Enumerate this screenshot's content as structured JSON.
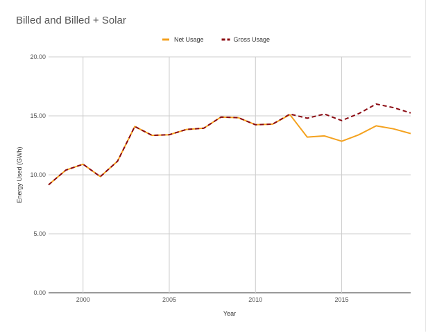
{
  "chart_data": {
    "type": "line",
    "title": "Billed and Billed + Solar",
    "xlabel": "Year",
    "ylabel": "Energy Used (GWh)",
    "xlim": [
      1998,
      2019
    ],
    "ylim": [
      0,
      20
    ],
    "xticks": [
      2000,
      2005,
      2010,
      2015
    ],
    "xtick_labels": [
      "2000",
      "2005",
      "2010",
      "2015"
    ],
    "yticks": [
      0,
      5,
      10,
      15,
      20
    ],
    "ytick_labels": [
      "0.00",
      "5.00",
      "10.00",
      "15.00",
      "20.00"
    ],
    "grid": true,
    "legend_position": "top",
    "x": [
      1998,
      1999,
      2000,
      2001,
      2002,
      2003,
      2004,
      2005,
      2006,
      2007,
      2008,
      2009,
      2010,
      2011,
      2012,
      2013,
      2014,
      2015,
      2016,
      2017,
      2018,
      2019
    ],
    "series": [
      {
        "name": "Net Usage",
        "color": "#f4a21f",
        "dash": false,
        "values": [
          9.15,
          10.4,
          10.9,
          9.85,
          11.15,
          14.1,
          13.35,
          13.4,
          13.85,
          13.95,
          14.9,
          14.85,
          14.25,
          14.3,
          15.1,
          13.2,
          13.3,
          12.85,
          13.4,
          14.15,
          13.9,
          13.5
        ]
      },
      {
        "name": "Gross Usage",
        "color": "#8b0a12",
        "dash": true,
        "values": [
          9.15,
          10.4,
          10.9,
          9.85,
          11.15,
          14.1,
          13.35,
          13.4,
          13.85,
          13.95,
          14.9,
          14.85,
          14.25,
          14.3,
          15.15,
          14.8,
          15.15,
          14.6,
          15.2,
          16.0,
          15.7,
          15.25
        ]
      }
    ]
  }
}
